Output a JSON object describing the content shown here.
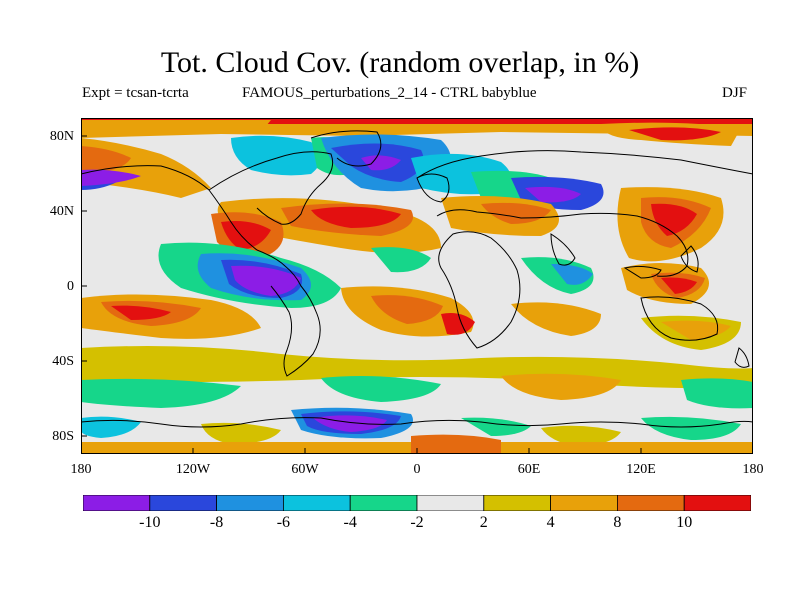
{
  "title": "Tot. Cloud Cov. (random overlap, in %)",
  "expt_label": "Expt = tcsan-tcrta",
  "run_label": "FAMOUS_perturbations_2_14 - CTRL babyblue",
  "season": "DJF",
  "lat_labels": [
    "80N",
    "40N",
    "0",
    "40S",
    "80S"
  ],
  "lon_labels": [
    "180",
    "120W",
    "60W",
    "0",
    "60E",
    "120E",
    "180"
  ],
  "colorbar": {
    "labels": [
      "-10",
      "-8",
      "-6",
      "-4",
      "-2",
      "2",
      "4",
      "8",
      "10"
    ],
    "colors": [
      "#8c1de6",
      "#2a47dc",
      "#1f91e0",
      "#0cc2de",
      "#16d68a",
      "#e8e8e8",
      "#d4c000",
      "#e8a10a",
      "#e46a10",
      "#e31010"
    ]
  }
}
